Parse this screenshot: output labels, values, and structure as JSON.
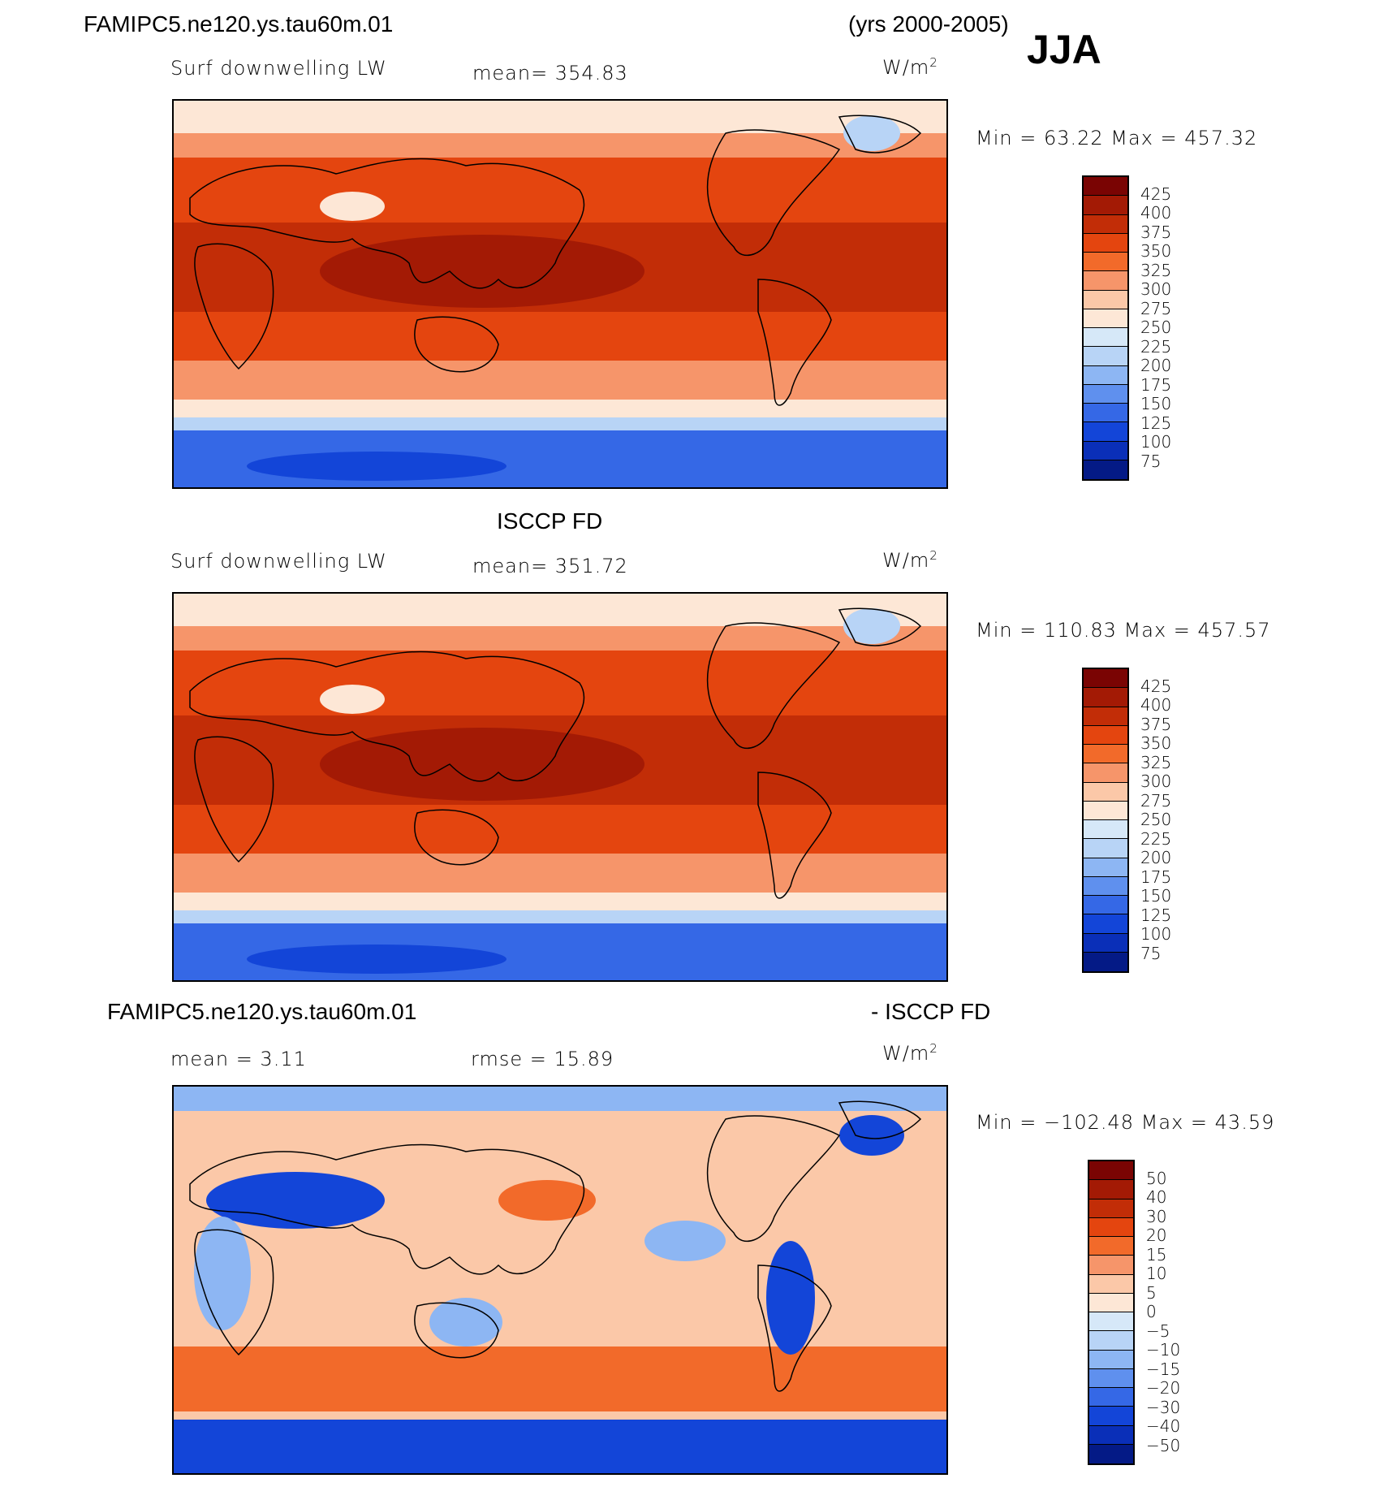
{
  "header": {
    "case_name": "FAMIPC5.ne120.ys.tau60m.01",
    "years": "(yrs 2000-2005)",
    "season": "JJA"
  },
  "panels": [
    {
      "id": "model",
      "title": "",
      "field_label": "Surf downwelling LW",
      "stat_text": "mean= 354.83",
      "units_base": "W/m",
      "units_exp": "2",
      "minmax_text": "Min =   63.22 Max = 457.32",
      "colorbar": {
        "levels": [
          "425",
          "400",
          "375",
          "350",
          "325",
          "300",
          "275",
          "250",
          "225",
          "200",
          "175",
          "150",
          "125",
          "100",
          "75"
        ],
        "colors": [
          "#7a0403",
          "#a31a05",
          "#c22d07",
          "#e4450f",
          "#f26a2a",
          "#f6956a",
          "#fbc8a8",
          "#fde7d6",
          "#d6e8f8",
          "#b8d4f6",
          "#8db6f3",
          "#5f90ee",
          "#3568e6",
          "#1345d8",
          "#0a2fb8",
          "#041a86"
        ]
      }
    },
    {
      "id": "obs",
      "title": "ISCCP FD",
      "field_label": "Surf downwelling LW",
      "stat_text": "mean= 351.72",
      "units_base": "W/m",
      "units_exp": "2",
      "minmax_text": "Min = 110.83 Max = 457.57",
      "colorbar": {
        "levels": [
          "425",
          "400",
          "375",
          "350",
          "325",
          "300",
          "275",
          "250",
          "225",
          "200",
          "175",
          "150",
          "125",
          "100",
          "75"
        ],
        "colors": [
          "#7a0403",
          "#a31a05",
          "#c22d07",
          "#e4450f",
          "#f26a2a",
          "#f6956a",
          "#fbc8a8",
          "#fde7d6",
          "#d6e8f8",
          "#b8d4f6",
          "#8db6f3",
          "#5f90ee",
          "#3568e6",
          "#1345d8",
          "#0a2fb8",
          "#041a86"
        ]
      }
    },
    {
      "id": "diff",
      "title_left": "FAMIPC5.ne120.ys.tau60m.01",
      "title_right": "- ISCCP FD",
      "stat_text": "mean =    3.11",
      "stat2_text": "rmse =   15.89",
      "units_base": "W/m",
      "units_exp": "2",
      "minmax_text": "Min = −102.48 Max =   43.59",
      "colorbar": {
        "levels": [
          "50",
          "40",
          "30",
          "20",
          "15",
          "10",
          "5",
          "0",
          "−5",
          "−10",
          "−15",
          "−20",
          "−30",
          "−40",
          "−50"
        ],
        "colors": [
          "#7a0403",
          "#a31a05",
          "#c22d07",
          "#e4450f",
          "#f26a2a",
          "#f6956a",
          "#fbc8a8",
          "#fde7d6",
          "#d6e8f8",
          "#b8d4f6",
          "#8db6f3",
          "#5f90ee",
          "#3568e6",
          "#1345d8",
          "#0a2fb8",
          "#041a86"
        ]
      }
    }
  ],
  "map_fills": {
    "polar_low": "#1345d8",
    "polar_mid": "#3568e6",
    "polar_edge": "#b8d4f6",
    "midlat": "#f6956a",
    "subtrop": "#e4450f",
    "tropics": "#c22d07",
    "warmpool": "#a31a05",
    "arctic": "#fde7d6",
    "land_cool": "#fbc8a8",
    "diff_base": "#fbc8a8",
    "diff_warm": "#f26a2a",
    "diff_cool": "#8db6f3",
    "diff_cold": "#1345d8",
    "coast": "#000000"
  }
}
